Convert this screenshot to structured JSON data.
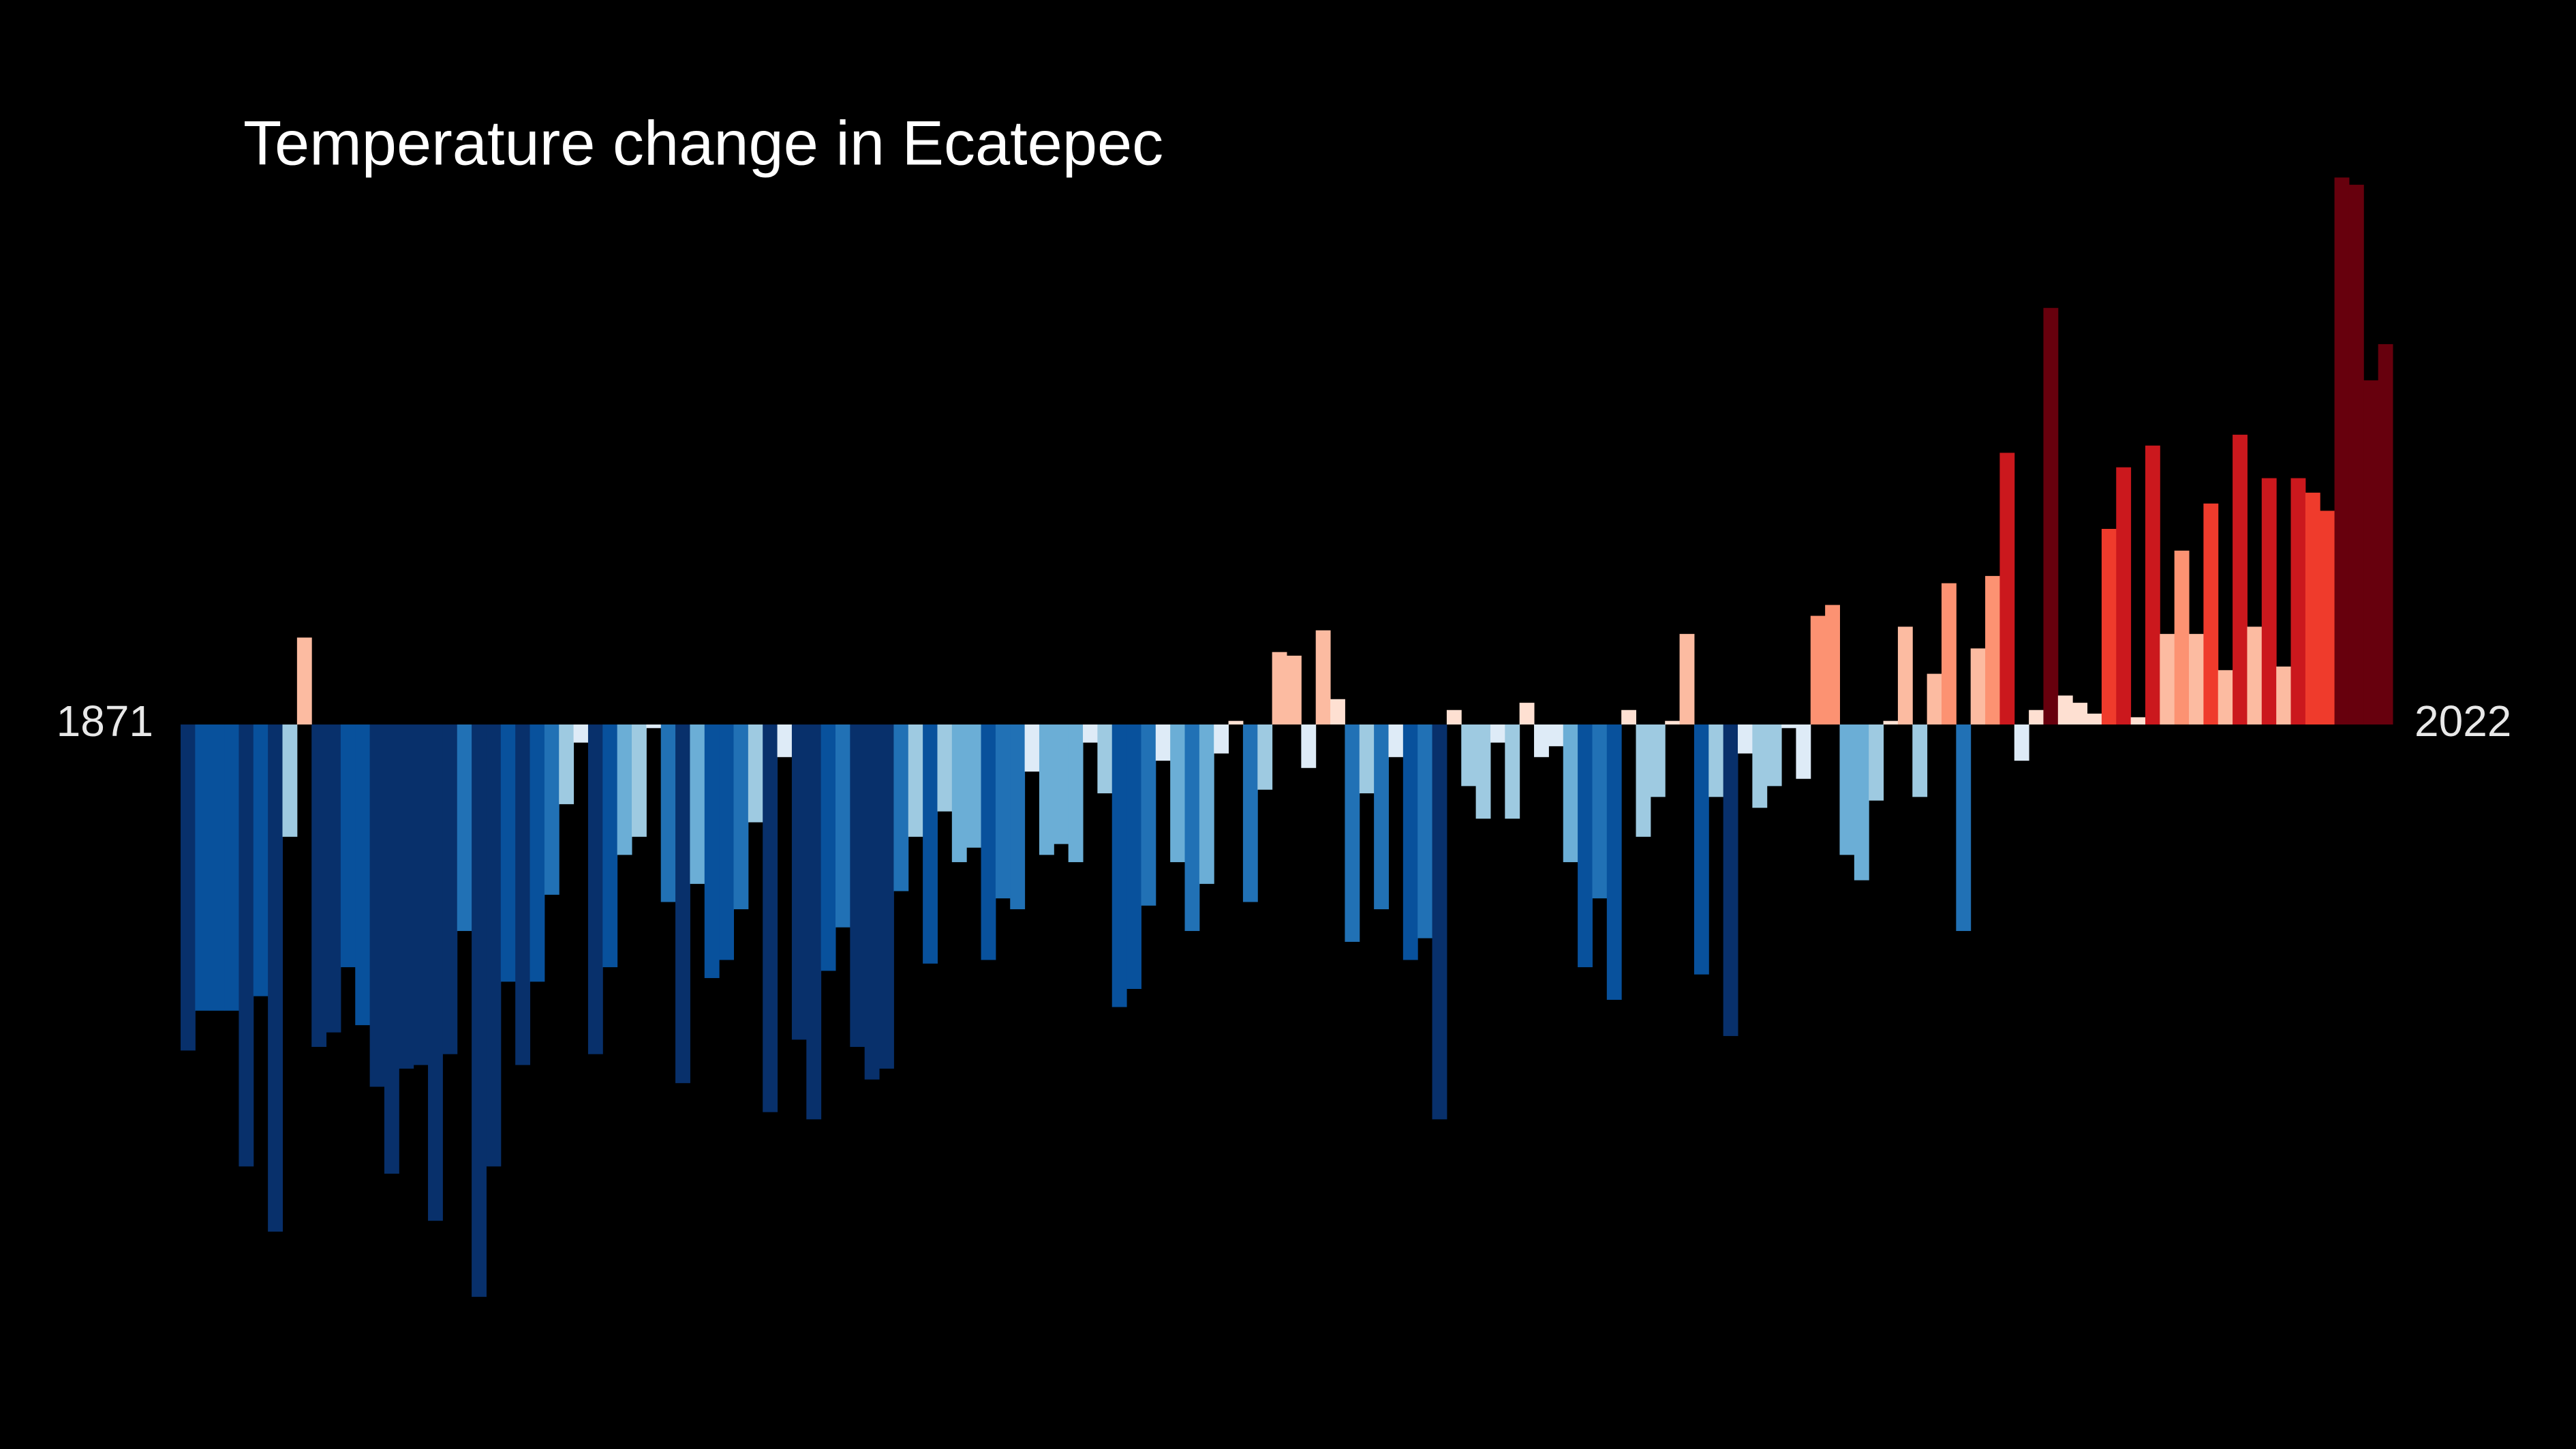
{
  "chart_data": {
    "type": "bar",
    "title": "Temperature change in Ecatepec",
    "categories": [
      "1871",
      null,
      null,
      null,
      null,
      null,
      null,
      null,
      null,
      null,
      null,
      null,
      null,
      null,
      null,
      null,
      null,
      null,
      null,
      null,
      null,
      null,
      null,
      null,
      null,
      null,
      null,
      null,
      null,
      null,
      null,
      null,
      null,
      null,
      null,
      null,
      null,
      null,
      null,
      null,
      null,
      null,
      null,
      null,
      null,
      null,
      null,
      null,
      null,
      null,
      null,
      null,
      null,
      null,
      null,
      null,
      null,
      null,
      null,
      null,
      null,
      null,
      null,
      null,
      null,
      null,
      null,
      null,
      null,
      null,
      null,
      null,
      null,
      null,
      null,
      null,
      null,
      null,
      null,
      null,
      null,
      null,
      null,
      null,
      null,
      null,
      null,
      null,
      null,
      null,
      null,
      null,
      null,
      null,
      null,
      null,
      null,
      null,
      null,
      null,
      null,
      null,
      null,
      null,
      null,
      null,
      null,
      null,
      null,
      null,
      null,
      null,
      null,
      null,
      null,
      null,
      null,
      null,
      null,
      null,
      null,
      null,
      null,
      null,
      null,
      null,
      null,
      null,
      null,
      null,
      null,
      null,
      null,
      null,
      null,
      null,
      null,
      null,
      null,
      null,
      null,
      null,
      null,
      null,
      null,
      null,
      null,
      null,
      null,
      null,
      null,
      "2022"
    ],
    "values": [
      -0.9,
      -0.79,
      -0.79,
      -0.79,
      -1.22,
      -0.75,
      -1.4,
      -0.31,
      0.24,
      -0.89,
      -0.85,
      -0.67,
      -0.83,
      -1.0,
      -1.24,
      -0.95,
      -0.94,
      -1.37,
      -0.91,
      -0.57,
      -1.58,
      -1.22,
      -0.71,
      -0.94,
      -0.71,
      -0.47,
      -0.22,
      -0.05,
      -0.91,
      -0.67,
      -0.36,
      -0.31,
      -0.01,
      -0.49,
      -0.99,
      -0.44,
      -0.7,
      -0.65,
      -0.51,
      -0.27,
      -1.07,
      -0.09,
      -0.87,
      -1.09,
      -0.68,
      -0.56,
      -0.89,
      -0.98,
      -0.95,
      -0.46,
      -0.31,
      -0.66,
      -0.24,
      -0.38,
      -0.34,
      -0.65,
      -0.48,
      -0.51,
      -0.13,
      -0.36,
      -0.33,
      -0.38,
      -0.05,
      -0.19,
      -0.78,
      -0.73,
      -0.5,
      -0.1,
      -0.38,
      -0.57,
      -0.44,
      -0.08,
      0.01,
      -0.49,
      -0.18,
      0.2,
      0.19,
      -0.12,
      0.26,
      0.07,
      -0.6,
      -0.19,
      -0.51,
      -0.09,
      -0.65,
      -0.59,
      -1.09,
      0.04,
      -0.17,
      -0.26,
      -0.05,
      -0.26,
      0.06,
      -0.09,
      -0.06,
      -0.38,
      -0.67,
      -0.48,
      -0.76,
      0.04,
      -0.31,
      -0.2,
      0.01,
      0.25,
      -0.69,
      -0.2,
      -0.86,
      -0.08,
      -0.23,
      -0.17,
      -0.01,
      -0.15,
      0.3,
      0.33,
      -0.36,
      -0.43,
      -0.21,
      0.01,
      0.27,
      -0.2,
      0.14,
      0.39,
      -0.57,
      0.21,
      0.41,
      0.75,
      -0.1,
      0.04,
      1.15,
      0.08,
      0.06,
      0.03,
      0.54,
      0.71,
      0.02,
      0.77,
      0.25,
      0.48,
      0.25,
      0.61,
      0.15,
      0.8,
      0.27,
      0.68,
      0.16,
      0.68,
      0.64,
      0.59,
      1.51,
      1.49,
      0.95,
      1.05
    ],
    "colors": [
      "#08306b",
      "#08519c",
      "#08519c",
      "#08519c",
      "#08306b",
      "#08519c",
      "#08306b",
      "#9ecae1",
      "#fcbba1",
      "#08306b",
      "#08306b",
      "#08519c",
      "#08519c",
      "#08306b",
      "#08306b",
      "#08306b",
      "#08306b",
      "#08306b",
      "#08306b",
      "#2171b5",
      "#08306b",
      "#08306b",
      "#08519c",
      "#08306b",
      "#08519c",
      "#2171b5",
      "#9ecae1",
      "#deebf7",
      "#08306b",
      "#08519c",
      "#6baed6",
      "#9ecae1",
      "#deebf7",
      "#2171b5",
      "#08306b",
      "#6baed6",
      "#08519c",
      "#08519c",
      "#2171b5",
      "#9ecae1",
      "#08306b",
      "#deebf7",
      "#08306b",
      "#08306b",
      "#08519c",
      "#2171b5",
      "#08306b",
      "#08306b",
      "#08306b",
      "#2171b5",
      "#9ecae1",
      "#08519c",
      "#9ecae1",
      "#6baed6",
      "#6baed6",
      "#08519c",
      "#2171b5",
      "#2171b5",
      "#deebf7",
      "#6baed6",
      "#6baed6",
      "#6baed6",
      "#deebf7",
      "#9ecae1",
      "#08519c",
      "#08519c",
      "#2171b5",
      "#deebf7",
      "#6baed6",
      "#2171b5",
      "#6baed6",
      "#deebf7",
      "#fee0d2",
      "#2171b5",
      "#9ecae1",
      "#fcbba1",
      "#fcbba1",
      "#deebf7",
      "#fcbba1",
      "#fee0d2",
      "#2171b5",
      "#9ecae1",
      "#2171b5",
      "#deebf7",
      "#08519c",
      "#2171b5",
      "#08306b",
      "#fee0d2",
      "#9ecae1",
      "#9ecae1",
      "#deebf7",
      "#9ecae1",
      "#fee0d2",
      "#deebf7",
      "#deebf7",
      "#6baed6",
      "#08519c",
      "#2171b5",
      "#08519c",
      "#fee0d2",
      "#9ecae1",
      "#9ecae1",
      "#fee0d2",
      "#fcbba1",
      "#08519c",
      "#9ecae1",
      "#08306b",
      "#deebf7",
      "#9ecae1",
      "#9ecae1",
      "#deebf7",
      "#deebf7",
      "#fc9272",
      "#fc9272",
      "#6baed6",
      "#6baed6",
      "#9ecae1",
      "#fee0d2",
      "#fcbba1",
      "#9ecae1",
      "#fcbba1",
      "#fc9272",
      "#2171b5",
      "#fcbba1",
      "#fc9272",
      "#cb181d",
      "#deebf7",
      "#fee0d2",
      "#67000d",
      "#fee0d2",
      "#fee0d2",
      "#fee0d2",
      "#ef3b2c",
      "#cb181d",
      "#fee0d2",
      "#cb181d",
      "#fcbba1",
      "#fc9272",
      "#fcbba1",
      "#ef3b2c",
      "#fcbba1",
      "#cb181d",
      "#fcbba1",
      "#cb181d",
      "#fcbba1",
      "#cb181d",
      "#ef3b2c",
      "#ef3b2c",
      "#67000d",
      "#67000d",
      "#67000d",
      "#67000d"
    ],
    "ylim": [
      -2.0,
      2.0
    ]
  }
}
